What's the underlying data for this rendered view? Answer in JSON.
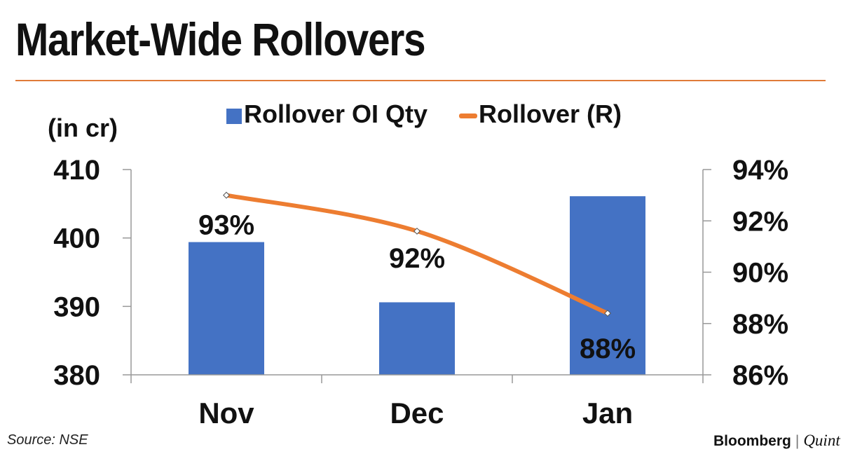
{
  "title": "Market-Wide Rollovers",
  "unit_label": "(in cr)",
  "source": "Source: NSE",
  "brand": {
    "primary": "Bloomberg",
    "separator": "|",
    "secondary": "Quint"
  },
  "colors": {
    "bar": "#4472c4",
    "line": "#ed7d31",
    "rule": "#e07b39"
  },
  "chart_data": {
    "type": "bar",
    "categories": [
      "Nov",
      "Dec",
      "Jan"
    ],
    "series": [
      {
        "name": "Rollover OI Qty",
        "type": "bar",
        "axis": "left",
        "values": [
          399.4,
          390.6,
          406.1
        ]
      },
      {
        "name": "Rollover (R)",
        "type": "line",
        "axis": "right",
        "values": [
          93.0,
          91.6,
          88.4
        ],
        "data_labels": [
          "93%",
          "92%",
          "88%"
        ]
      }
    ],
    "y_left": {
      "min": 380,
      "max": 410,
      "ticks": [
        "380",
        "390",
        "400",
        "410"
      ]
    },
    "y_right": {
      "min": 86,
      "max": 94,
      "ticks": [
        "86%",
        "88%",
        "90%",
        "92%",
        "94%"
      ]
    },
    "legend": "top-center",
    "grid": false
  }
}
